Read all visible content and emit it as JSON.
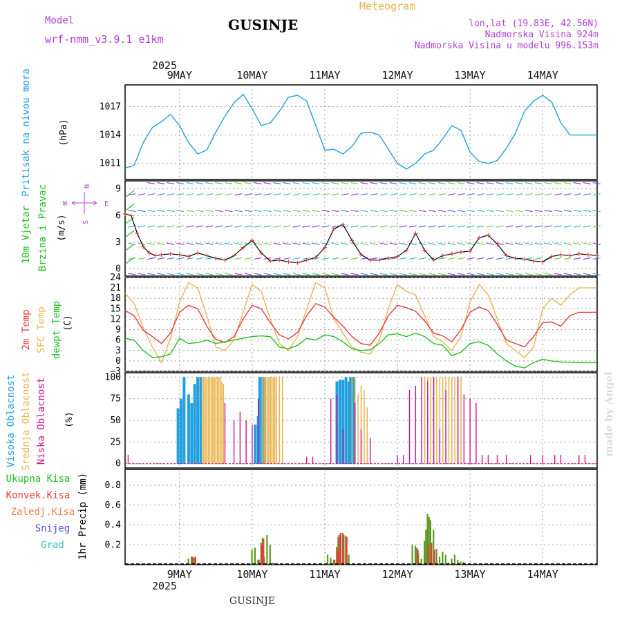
{
  "header": {
    "model_label": "Model",
    "model_name": "wrf-nmm_v3.9.1 e1km",
    "location": "GUSINJE",
    "product": "Meteogram",
    "coords": "lon,lat (19.83E, 42.56N)",
    "elevation": "Nadmorska Visina 924m",
    "model_elevation": "Nadmorska Visina u modelu 996.153m",
    "footer_location": "GUSINJE",
    "credit": "made by Angel"
  },
  "colors": {
    "magenta": "#b040d8",
    "orange": "#e8b450",
    "blue": "#20a0e0",
    "red": "#e83c3c",
    "green": "#20c020",
    "pink": "#d0108a",
    "olive": "#5a9a20",
    "navy": "#5050e0",
    "cyan": "#30c0c0"
  },
  "time_axis": {
    "year_label": "2025",
    "days": [
      "9MAY",
      "10MAY",
      "11MAY",
      "12MAY",
      "13MAY",
      "14MAY"
    ]
  },
  "panels": {
    "pressure": {
      "label": "Pritisak na nivou mora",
      "unit": "(hPa)"
    },
    "wind": {
      "label1": "10m Vjetar",
      "label2": "Brzina i Pravac",
      "unit": "(m/s)",
      "compass_w": "W",
      "compass_e": "E",
      "compass_n": "N",
      "compass_s": "S"
    },
    "temp": {
      "label1": "2m Temp",
      "label2": "SFC Temp",
      "label3": "dewpt Temp",
      "unit": "(C)"
    },
    "cloud": {
      "label1": "Visoka Oblacnost",
      "label2": "Srednja Oblacnost",
      "label3": "Niska Oblacnost",
      "unit": "(%)"
    },
    "precip": {
      "legend": [
        "Ukupna Kisa",
        "Konvek.Kisa",
        "Zaledj.Kisa",
        "Snijeg",
        "Grad"
      ],
      "unit": "1hr Precip (mm)"
    }
  },
  "chart_data": [
    {
      "type": "line",
      "title": "Pritisak na nivou mora",
      "ylabel": "(hPa)",
      "x_unit": "hours from 9MAY 00 UTC",
      "ylim": [
        1009.3,
        1019.3
      ],
      "yticks": [
        1011,
        1014,
        1017
      ],
      "series": [
        {
          "name": "Pritisak na nivou mora",
          "x": [
            -6,
            -3,
            0,
            3,
            6,
            9,
            12,
            15,
            18,
            21,
            24,
            27,
            30,
            33,
            36,
            39,
            42,
            45,
            48,
            51,
            54,
            57,
            60,
            63,
            66,
            69,
            72,
            75,
            78,
            81,
            84,
            87,
            90,
            93,
            96,
            99,
            102,
            105,
            108,
            111,
            114,
            117,
            120,
            123,
            126,
            129,
            132,
            135,
            138,
            141,
            144,
            147,
            150
          ],
          "y": [
            1010.5,
            1010.8,
            1013.2,
            1014.8,
            1015.4,
            1016.2,
            1015.0,
            1013.2,
            1012.0,
            1012.4,
            1014.3,
            1016.0,
            1017.4,
            1018.3,
            1016.8,
            1015.0,
            1015.3,
            1016.5,
            1018.0,
            1018.2,
            1017.6,
            1015.0,
            1012.4,
            1012.5,
            1012.0,
            1012.8,
            1014.2,
            1014.3,
            1014.0,
            1012.5,
            1011.0,
            1010.4,
            1011.0,
            1012.0,
            1012.4,
            1013.6,
            1015.0,
            1014.5,
            1012.2,
            1011.2,
            1011.0,
            1011.3,
            1012.6,
            1014.2,
            1016.5,
            1017.6,
            1018.2,
            1017.5,
            1015.3,
            1014.0,
            1014.0,
            1014.0,
            1014.0
          ]
        }
      ]
    },
    {
      "type": "line",
      "title": "10m Vjetar Brzina i Pravac",
      "ylabel": "(m/s)",
      "x_unit": "hours from 9MAY 00 UTC",
      "ylim": [
        -0.8,
        9.9
      ],
      "yticks": [
        0,
        3,
        6,
        9
      ],
      "series": [
        {
          "name": "wind speed",
          "x": [
            -6,
            -4,
            -2,
            0,
            2,
            4,
            6,
            9,
            12,
            15,
            18,
            21,
            24,
            27,
            30,
            33,
            36,
            39,
            42,
            45,
            48,
            51,
            54,
            57,
            60,
            63,
            66,
            69,
            72,
            75,
            78,
            81,
            84,
            87,
            90,
            93,
            96,
            99,
            102,
            105,
            108,
            111,
            114,
            117,
            120,
            123,
            126,
            129,
            132,
            135,
            138,
            141,
            144,
            147,
            150
          ],
          "y": [
            6.2,
            6.0,
            4.0,
            2.5,
            1.8,
            1.5,
            1.6,
            1.7,
            1.6,
            1.4,
            1.8,
            1.5,
            1.2,
            1.0,
            1.5,
            2.4,
            3.2,
            1.8,
            0.9,
            1.0,
            0.8,
            0.7,
            1.0,
            1.3,
            2.4,
            4.5,
            5.0,
            3.2,
            1.6,
            1.0,
            1.0,
            1.2,
            1.4,
            2.1,
            4.0,
            2.1,
            1.0,
            1.5,
            1.7,
            1.9,
            2.0,
            3.5,
            3.8,
            2.8,
            1.5,
            1.2,
            1.1,
            0.9,
            0.8,
            1.4,
            1.6,
            1.5,
            1.7,
            1.6,
            1.5
          ]
        }
      ]
    },
    {
      "type": "line",
      "title": "2m Temp / SFC Temp / dewpt Temp",
      "ylabel": "(C)",
      "x_unit": "hours from 9MAY 00 UTC",
      "ylim": [
        -3,
        24
      ],
      "yticks": [
        -3,
        0,
        3,
        6,
        9,
        12,
        15,
        18,
        21,
        24
      ],
      "series": [
        {
          "name": "2m Temp",
          "x": [
            -6,
            -3,
            0,
            3,
            6,
            9,
            12,
            15,
            18,
            21,
            24,
            27,
            30,
            33,
            36,
            39,
            42,
            45,
            48,
            51,
            54,
            57,
            60,
            63,
            66,
            69,
            72,
            75,
            78,
            81,
            84,
            87,
            90,
            93,
            96,
            99,
            102,
            105,
            108,
            111,
            114,
            117,
            120,
            123,
            126,
            129,
            132,
            135,
            138,
            141,
            144,
            147,
            150
          ],
          "y": [
            14.5,
            13.0,
            8.8,
            7.0,
            5.0,
            8.0,
            14.0,
            16.0,
            15.0,
            10.0,
            6.2,
            5.3,
            7.0,
            12.0,
            16.0,
            15.0,
            11.0,
            7.5,
            6.3,
            8.2,
            13.0,
            16.5,
            15.5,
            12.5,
            10.0,
            7.0,
            5.0,
            4.5,
            8.0,
            13.0,
            16.0,
            15.3,
            14.3,
            11.5,
            8.0,
            7.2,
            5.5,
            9.0,
            14.0,
            15.5,
            14.5,
            10.5,
            6.0,
            5.0,
            4.0,
            7.0,
            11.0,
            11.2,
            10.0,
            13.0,
            14.0,
            14.0,
            14.0
          ]
        },
        {
          "name": "SFC Temp",
          "x": [
            -6,
            -3,
            0,
            3,
            6,
            9,
            12,
            15,
            18,
            21,
            24,
            27,
            30,
            33,
            36,
            39,
            42,
            45,
            48,
            51,
            54,
            57,
            60,
            63,
            66,
            69,
            72,
            75,
            78,
            81,
            84,
            87,
            90,
            93,
            96,
            99,
            102,
            105,
            108,
            111,
            114,
            117,
            120,
            123,
            126,
            129,
            132,
            135,
            138,
            141,
            144,
            147,
            150
          ],
          "y": [
            19.5,
            16.5,
            9.5,
            4.0,
            -0.5,
            6.5,
            17.0,
            22.5,
            21.0,
            13.0,
            4.0,
            3.0,
            6.0,
            14.0,
            22.0,
            20.0,
            12.0,
            5.0,
            3.0,
            7.0,
            15.0,
            22.5,
            21.0,
            12.0,
            8.0,
            4.0,
            2.5,
            2.0,
            6.0,
            15.0,
            22.0,
            20.0,
            19.0,
            13.0,
            7.0,
            5.5,
            3.0,
            7.0,
            17.0,
            22.0,
            19.0,
            12.0,
            5.0,
            3.0,
            1.0,
            4.0,
            15.0,
            18.0,
            16.0,
            19.0,
            21.0,
            21.0,
            21.0
          ]
        },
        {
          "name": "dewpt Temp",
          "x": [
            -6,
            -3,
            0,
            3,
            6,
            9,
            12,
            15,
            18,
            21,
            24,
            27,
            30,
            33,
            36,
            39,
            42,
            45,
            48,
            51,
            54,
            57,
            60,
            63,
            66,
            69,
            72,
            75,
            78,
            81,
            84,
            87,
            90,
            93,
            96,
            99,
            102,
            105,
            108,
            111,
            114,
            117,
            120,
            123,
            126,
            129,
            132,
            135,
            138,
            141,
            144,
            147,
            150
          ],
          "y": [
            6.5,
            6.0,
            3.0,
            1.0,
            1.2,
            2.0,
            6.5,
            5.0,
            5.3,
            6.0,
            5.0,
            5.5,
            6.0,
            6.5,
            7.0,
            7.2,
            7.0,
            4.0,
            3.5,
            4.5,
            6.5,
            6.0,
            7.5,
            7.0,
            5.5,
            3.5,
            3.0,
            3.2,
            5.0,
            7.5,
            7.8,
            7.0,
            8.0,
            7.0,
            5.0,
            4.5,
            1.5,
            2.5,
            5.0,
            5.5,
            4.5,
            2.0,
            0.0,
            -1.5,
            -2.0,
            -0.5,
            0.5,
            0.0,
            -0.3,
            -0.4,
            -0.5,
            -0.5,
            -0.5
          ]
        }
      ]
    },
    {
      "type": "bar",
      "title": "Visoka / Srednja / Niska Oblacnost",
      "ylabel": "(%)",
      "x_unit": "hours from 9MAY 00 UTC",
      "ylim": [
        -5,
        105
      ],
      "yticks": [
        0,
        25,
        50,
        75,
        100
      ],
      "series": [
        {
          "name": "Visoka Oblacnost",
          "x": [
            11.5,
            12.5,
            13.5,
            15,
            16,
            17,
            18,
            19,
            37,
            38,
            38.5,
            39.5,
            40,
            64,
            65,
            66,
            67,
            68,
            68.5,
            69.5
          ],
          "y": [
            64,
            75,
            100,
            80,
            70,
            92,
            100,
            100,
            45,
            55,
            100,
            100,
            100,
            95,
            97,
            97,
            100,
            95,
            100,
            100
          ]
        },
        {
          "name": "Srednja Oblacnost",
          "x": [
            19.5,
            20,
            20.5,
            21,
            21.5,
            22,
            22.5,
            23,
            23.5,
            24,
            24.5,
            25,
            25.5,
            26,
            26.5,
            39.5,
            40,
            40.5,
            41,
            41.5,
            42,
            42.5,
            43,
            43.5,
            44,
            45,
            46,
            69,
            70,
            71,
            72,
            73,
            74,
            93,
            94,
            95,
            96,
            97,
            98,
            99,
            100,
            101,
            102,
            103,
            104,
            105
          ],
          "y": [
            100,
            100,
            100,
            100,
            100,
            100,
            100,
            100,
            100,
            100,
            100,
            100,
            100,
            95,
            92,
            100,
            100,
            100,
            100,
            100,
            100,
            100,
            100,
            100,
            100,
            100,
            100,
            100,
            100,
            80,
            90,
            85,
            65,
            100,
            100,
            100,
            100,
            100,
            100,
            100,
            100,
            100,
            100,
            100,
            100,
            100
          ]
        },
        {
          "name": "Niska Oblacnost",
          "x": [
            -5,
            27,
            30,
            32,
            34,
            36,
            38,
            54,
            56,
            62,
            64,
            66,
            70,
            72,
            75,
            84,
            86,
            88,
            90,
            92,
            94,
            96,
            98,
            100,
            104,
            106,
            108,
            110,
            112,
            114,
            117,
            120,
            128,
            132,
            136,
            138,
            144,
            146
          ],
          "y": [
            10,
            70,
            50,
            60,
            50,
            45,
            75,
            8,
            8,
            75,
            80,
            40,
            70,
            40,
            30,
            10,
            10,
            85,
            90,
            100,
            95,
            100,
            40,
            85,
            100,
            80,
            75,
            70,
            10,
            10,
            10,
            10,
            10,
            10,
            10,
            10,
            10,
            10
          ]
        }
      ]
    },
    {
      "type": "bar",
      "title": "1hr Precip",
      "ylabel": "1hr Precip (mm)",
      "x_unit": "hours from 9MAY 00 UTC",
      "ylim": [
        0,
        0.96
      ],
      "yticks": [
        0.2,
        0.4,
        0.6,
        0.8
      ],
      "series": [
        {
          "name": "Ukupna Kisa",
          "x": [
            15,
            16,
            16.5,
            17,
            36,
            37,
            38,
            39,
            39.5,
            40,
            41,
            42,
            43,
            61,
            62,
            63,
            64,
            64.5,
            65,
            66,
            67,
            68,
            89,
            90,
            90.5,
            91,
            92,
            93,
            93.5,
            94,
            94.5,
            95,
            96,
            97,
            98,
            99,
            100,
            101,
            102,
            103,
            104,
            105,
            106
          ],
          "y": [
            0.06,
            0.08,
            0.08,
            0.07,
            0.15,
            0.17,
            0.05,
            0.22,
            0.27,
            0.08,
            0.3,
            0.2,
            0.02,
            0.1,
            0.07,
            0.05,
            0.18,
            0.28,
            0.1,
            0.32,
            0.29,
            0.1,
            0.2,
            0.19,
            0.17,
            0.11,
            0.06,
            0.24,
            0.35,
            0.51,
            0.48,
            0.45,
            0.35,
            0.16,
            0.08,
            0.13,
            0.1,
            0.02,
            0.06,
            0.1,
            0.05,
            0.03,
            0.03
          ]
        },
        {
          "name": "Konvek.Kisa",
          "x": [
            16,
            17,
            38,
            39,
            39.5,
            63,
            64,
            64.5,
            65,
            66,
            67,
            90.5,
            94,
            95,
            96
          ],
          "y": [
            0.08,
            0.08,
            0.05,
            0.2,
            0.26,
            0.05,
            0.15,
            0.3,
            0.32,
            0.3,
            0.28,
            0.15,
            0.2,
            0.22,
            0.15
          ]
        }
      ]
    }
  ]
}
